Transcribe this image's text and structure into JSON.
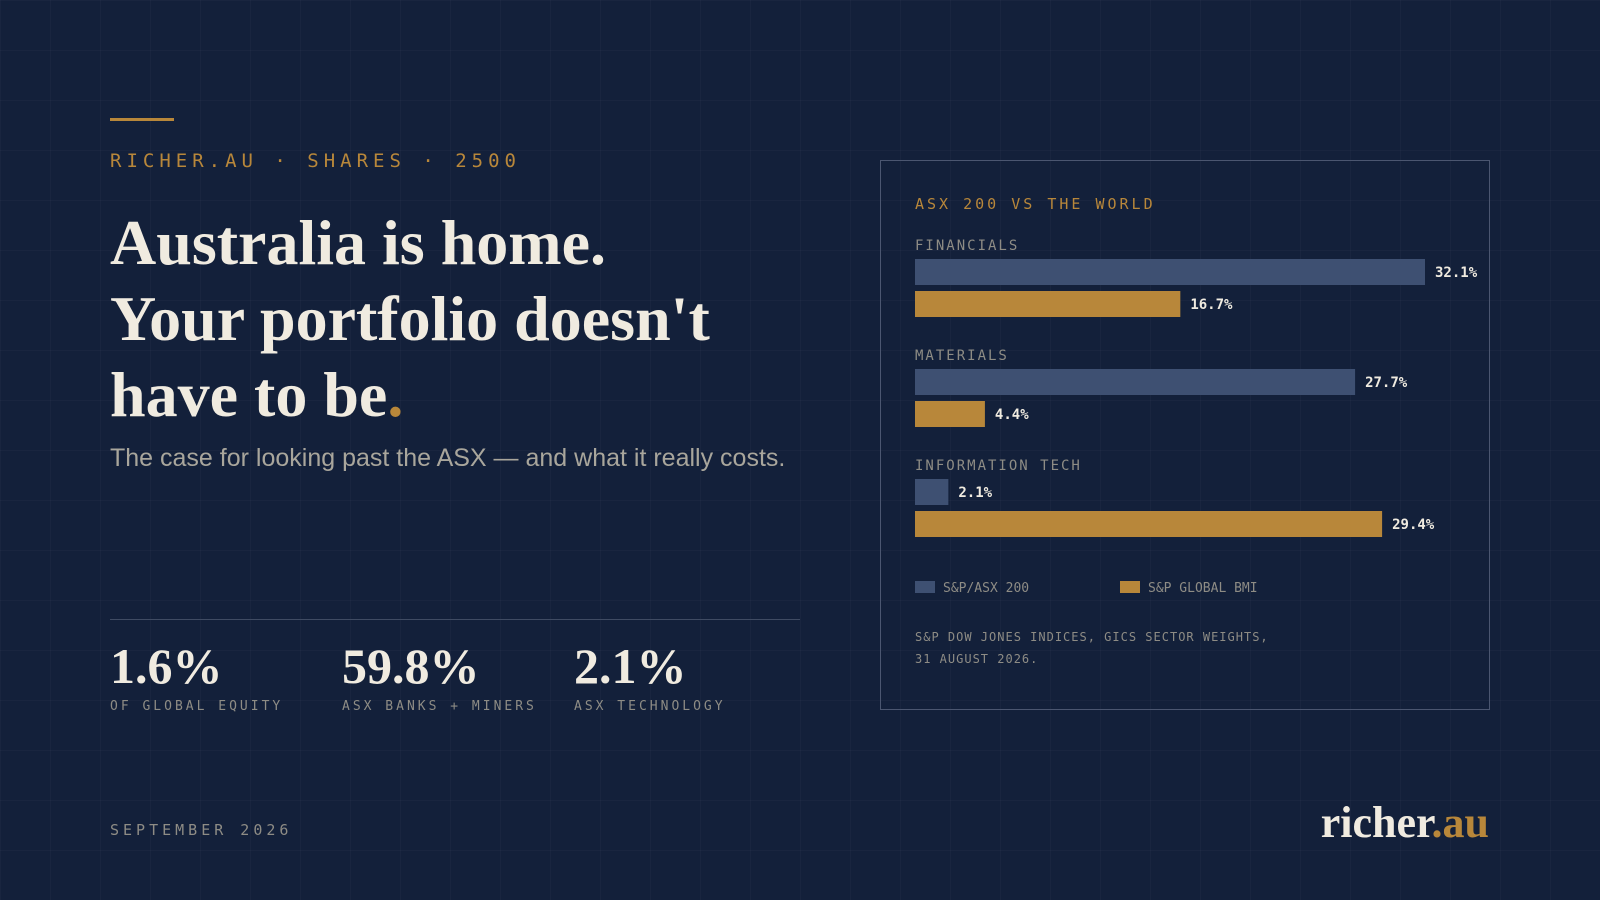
{
  "kicker": "RICHER.AU · SHARES · 2500",
  "headline": {
    "line1": "Australia is home.",
    "line2": "Your portfolio doesn't",
    "line3_text": "have to be",
    "line3_dot": "."
  },
  "subtitle": "The case for looking past the ASX — and what it really costs.",
  "stats": [
    {
      "value": "1.6%",
      "label": "OF GLOBAL EQUITY"
    },
    {
      "value": "59.8%",
      "label": "ASX BANKS + MINERS"
    },
    {
      "value": "2.1%",
      "label": "ASX TECHNOLOGY"
    }
  ],
  "footer": {
    "date": "SEPTEMBER 2026"
  },
  "brand": {
    "main": "richer",
    "accent": ".au"
  },
  "colors": {
    "background": "#13203a",
    "accent": "#b8873a",
    "asx_series": "#3e5072",
    "global_series": "#b8873a",
    "text_light": "#f0ebe0",
    "text_muted": "#8e8c85"
  },
  "chart_data": {
    "type": "bar",
    "orientation": "horizontal",
    "title": "ASX 200 VS THE WORLD",
    "categories": [
      "FINANCIALS",
      "MATERIALS",
      "INFORMATION TECH"
    ],
    "series": [
      {
        "name": "S&P/ASX 200",
        "values": [
          32.1,
          27.7,
          2.1
        ],
        "color": "#3e5072"
      },
      {
        "name": "S&P GLOBAL BMI",
        "values": [
          16.7,
          4.4,
          29.4
        ],
        "color": "#b8873a"
      }
    ],
    "value_suffix": "%",
    "xlim": [
      0,
      32.1
    ],
    "grid": false,
    "legend": "bottom-left",
    "source_line1": "S&P DOW JONES INDICES, GICS SECTOR WEIGHTS,",
    "source_line2": "31 AUGUST 2026."
  }
}
